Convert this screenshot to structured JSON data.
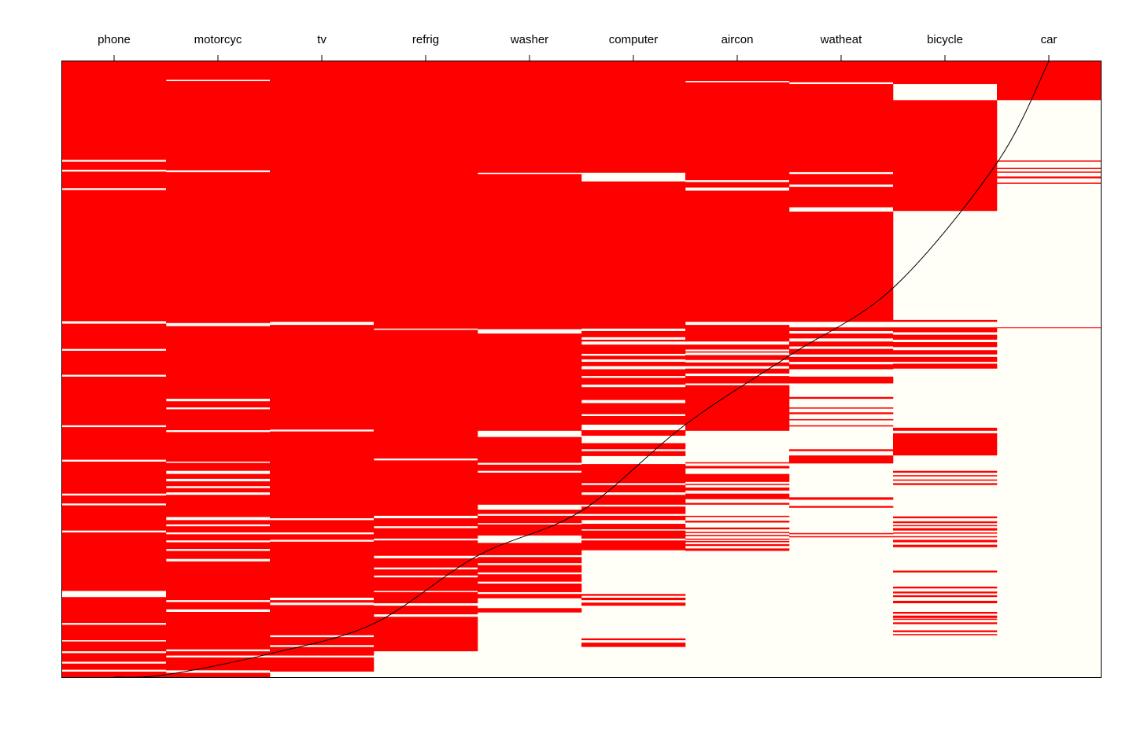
{
  "colors": {
    "owned": "#ff0000",
    "not_owned": "#fffff8",
    "curve": "#000000",
    "frame": "#000000"
  },
  "chart_data": {
    "type": "heatmap",
    "title": "",
    "xlabel": "",
    "ylabel": "",
    "grid": false,
    "legend": "none",
    "categories": [
      "phone",
      "motorcyc",
      "tv",
      "refrig",
      "washer",
      "computer",
      "aircon",
      "watheat",
      "bicycle",
      "car"
    ],
    "row_range": [
      0,
      1
    ],
    "cell_encoding": "Each column lists fractional row intervals [start, end] (0 = top row, 1 = bottom row) where the item is owned (red); remaining rows are not owned.",
    "owned_intervals": [
      [
        [
          0.0,
          0.16
        ],
        [
          0.163,
          0.176
        ],
        [
          0.179,
          0.206
        ],
        [
          0.209,
          0.422
        ],
        [
          0.426,
          0.467
        ],
        [
          0.47,
          0.509
        ],
        [
          0.512,
          0.591
        ],
        [
          0.594,
          0.647
        ],
        [
          0.65,
          0.702
        ],
        [
          0.705,
          0.718
        ],
        [
          0.721,
          0.762
        ],
        [
          0.765,
          0.86
        ],
        [
          0.87,
          0.912
        ],
        [
          0.915,
          0.94
        ],
        [
          0.942,
          0.958
        ],
        [
          0.961,
          0.975
        ],
        [
          0.978,
          0.988
        ],
        [
          0.991,
          1.0
        ]
      ],
      [
        [
          0.0,
          0.03
        ],
        [
          0.032,
          0.177
        ],
        [
          0.18,
          0.425
        ],
        [
          0.43,
          0.548
        ],
        [
          0.552,
          0.562
        ],
        [
          0.565,
          0.599
        ],
        [
          0.602,
          0.65
        ],
        [
          0.652,
          0.665
        ],
        [
          0.67,
          0.678
        ],
        [
          0.682,
          0.69
        ],
        [
          0.693,
          0.7
        ],
        [
          0.704,
          0.74
        ],
        [
          0.745,
          0.752
        ],
        [
          0.755,
          0.765
        ],
        [
          0.768,
          0.778
        ],
        [
          0.781,
          0.792
        ],
        [
          0.795,
          0.808
        ],
        [
          0.812,
          0.875
        ],
        [
          0.878,
          0.89
        ],
        [
          0.894,
          0.955
        ],
        [
          0.958,
          0.965
        ],
        [
          0.968,
          0.989
        ],
        [
          0.993,
          1.0
        ]
      ],
      [
        [
          0.0,
          0.423
        ],
        [
          0.428,
          0.598
        ],
        [
          0.601,
          0.742
        ],
        [
          0.745,
          0.765
        ],
        [
          0.768,
          0.777
        ],
        [
          0.78,
          0.871
        ],
        [
          0.875,
          0.879
        ],
        [
          0.883,
          0.932
        ],
        [
          0.935,
          0.948
        ],
        [
          0.951,
          0.965
        ],
        [
          0.968,
          0.991
        ]
      ],
      [
        [
          0.0,
          0.434
        ],
        [
          0.436,
          0.645
        ],
        [
          0.648,
          0.738
        ],
        [
          0.742,
          0.755
        ],
        [
          0.758,
          0.775
        ],
        [
          0.778,
          0.803
        ],
        [
          0.807,
          0.822
        ],
        [
          0.825,
          0.835
        ],
        [
          0.838,
          0.86
        ],
        [
          0.862,
          0.88
        ],
        [
          0.884,
          0.898
        ],
        [
          0.902,
          0.958
        ]
      ],
      [
        [
          0.0,
          0.181
        ],
        [
          0.183,
          0.435
        ],
        [
          0.442,
          0.6
        ],
        [
          0.61,
          0.652
        ],
        [
          0.655,
          0.665
        ],
        [
          0.668,
          0.72
        ],
        [
          0.728,
          0.735
        ],
        [
          0.738,
          0.75
        ],
        [
          0.752,
          0.77
        ],
        [
          0.782,
          0.802
        ],
        [
          0.805,
          0.815
        ],
        [
          0.818,
          0.83
        ],
        [
          0.833,
          0.845
        ],
        [
          0.848,
          0.862
        ],
        [
          0.865,
          0.872
        ],
        [
          0.888,
          0.895
        ]
      ],
      [
        [
          0.0,
          0.181
        ],
        [
          0.195,
          0.434
        ],
        [
          0.438,
          0.448
        ],
        [
          0.452,
          0.455
        ],
        [
          0.46,
          0.475
        ],
        [
          0.478,
          0.484
        ],
        [
          0.488,
          0.495
        ],
        [
          0.5,
          0.511
        ],
        [
          0.514,
          0.525
        ],
        [
          0.529,
          0.55
        ],
        [
          0.555,
          0.573
        ],
        [
          0.576,
          0.59
        ],
        [
          0.599,
          0.608
        ],
        [
          0.62,
          0.63
        ],
        [
          0.633,
          0.641
        ],
        [
          0.654,
          0.685
        ],
        [
          0.688,
          0.7
        ],
        [
          0.704,
          0.72
        ],
        [
          0.723,
          0.735
        ],
        [
          0.738,
          0.745
        ],
        [
          0.751,
          0.76
        ],
        [
          0.762,
          0.775
        ],
        [
          0.778,
          0.794
        ],
        [
          0.865,
          0.868
        ],
        [
          0.871,
          0.875
        ],
        [
          0.879,
          0.884
        ],
        [
          0.937,
          0.94
        ],
        [
          0.944,
          0.951
        ]
      ],
      [
        [
          0.0,
          0.032
        ],
        [
          0.034,
          0.193
        ],
        [
          0.196,
          0.205
        ],
        [
          0.21,
          0.423
        ],
        [
          0.428,
          0.455
        ],
        [
          0.46,
          0.468
        ],
        [
          0.471,
          0.473
        ],
        [
          0.477,
          0.485
        ],
        [
          0.489,
          0.495
        ],
        [
          0.499,
          0.507
        ],
        [
          0.511,
          0.523
        ],
        [
          0.527,
          0.54
        ],
        [
          0.526,
          0.6
        ],
        [
          0.651,
          0.653
        ],
        [
          0.657,
          0.661
        ],
        [
          0.67,
          0.683
        ],
        [
          0.686,
          0.688
        ],
        [
          0.692,
          0.697
        ],
        [
          0.702,
          0.711
        ],
        [
          0.717,
          0.72
        ],
        [
          0.738,
          0.74
        ],
        [
          0.746,
          0.749
        ],
        [
          0.757,
          0.76
        ],
        [
          0.764,
          0.766
        ],
        [
          0.769,
          0.771
        ],
        [
          0.775,
          0.777
        ],
        [
          0.779,
          0.781
        ],
        [
          0.784,
          0.787
        ],
        [
          0.791,
          0.795
        ]
      ],
      [
        [
          0.0,
          0.034
        ],
        [
          0.037,
          0.18
        ],
        [
          0.183,
          0.2
        ],
        [
          0.204,
          0.237
        ],
        [
          0.244,
          0.423
        ],
        [
          0.432,
          0.438
        ],
        [
          0.442,
          0.45
        ],
        [
          0.455,
          0.463
        ],
        [
          0.467,
          0.476
        ],
        [
          0.48,
          0.488
        ],
        [
          0.492,
          0.5
        ],
        [
          0.512,
          0.523
        ],
        [
          0.545,
          0.548
        ],
        [
          0.562,
          0.564
        ],
        [
          0.57,
          0.573
        ],
        [
          0.581,
          0.583
        ],
        [
          0.591,
          0.593
        ],
        [
          0.63,
          0.633
        ],
        [
          0.64,
          0.653
        ],
        [
          0.708,
          0.712
        ],
        [
          0.722,
          0.725
        ],
        [
          0.766,
          0.768
        ],
        [
          0.771,
          0.773
        ]
      ],
      [
        [
          0.0,
          0.037
        ],
        [
          0.063,
          0.243
        ],
        [
          0.42,
          0.423
        ],
        [
          0.432,
          0.44
        ],
        [
          0.444,
          0.452
        ],
        [
          0.456,
          0.464
        ],
        [
          0.469,
          0.476
        ],
        [
          0.48,
          0.488
        ],
        [
          0.491,
          0.499
        ],
        [
          0.595,
          0.6
        ],
        [
          0.604,
          0.64
        ],
        [
          0.665,
          0.668
        ],
        [
          0.672,
          0.674
        ],
        [
          0.679,
          0.681
        ],
        [
          0.685,
          0.688
        ],
        [
          0.739,
          0.742
        ],
        [
          0.747,
          0.75
        ],
        [
          0.753,
          0.755
        ],
        [
          0.758,
          0.762
        ],
        [
          0.765,
          0.767
        ],
        [
          0.771,
          0.773
        ],
        [
          0.777,
          0.781
        ],
        [
          0.785,
          0.789
        ],
        [
          0.827,
          0.83
        ],
        [
          0.861,
          0.864
        ],
        [
          0.853,
          0.856
        ],
        [
          0.867,
          0.87
        ],
        [
          0.876,
          0.88
        ],
        [
          0.894,
          0.897
        ],
        [
          0.9,
          0.904
        ],
        [
          0.905,
          0.907
        ],
        [
          0.911,
          0.914
        ],
        [
          0.924,
          0.927
        ],
        [
          0.93,
          0.932
        ]
      ],
      [
        [
          0.0,
          0.063
        ],
        [
          0.161,
          0.163
        ],
        [
          0.173,
          0.175
        ],
        [
          0.179,
          0.181
        ],
        [
          0.187,
          0.19
        ],
        [
          0.197,
          0.199
        ],
        [
          0.432,
          0.433
        ]
      ]
    ],
    "curve_note": "Row fraction (0 = top, 1 = bottom) where the curve crosses each column edge, from the left edge of phone to the right edge of car.",
    "curve_row_at_column_edges": [
      1.0,
      0.996,
      0.962,
      0.913,
      0.803,
      0.73,
      0.59,
      0.478,
      0.368,
      0.165,
      0.0
    ]
  }
}
